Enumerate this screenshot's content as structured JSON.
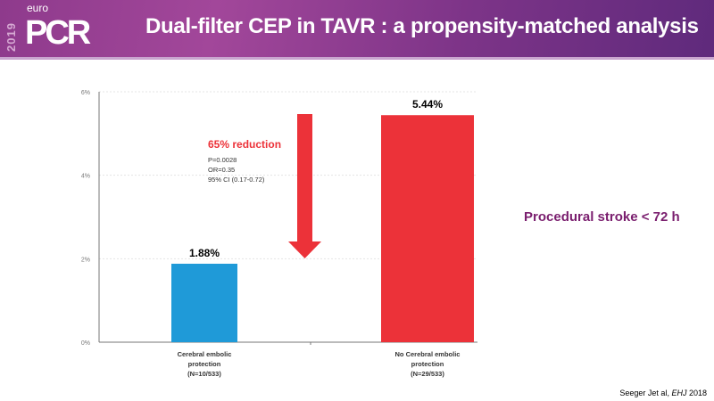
{
  "header": {
    "title": "Dual-filter CEP in TAVR : a propensity-matched analysis",
    "logo": {
      "year": "2019",
      "brand_top": "euro",
      "brand": "PCR"
    }
  },
  "side_label": "Procedural stroke < 72 h",
  "citation": {
    "authors": "Seeger Jet al, ",
    "journal": "EHJ",
    "year": " 2018"
  },
  "colors": {
    "blue": "#1f9ad8",
    "red": "#ec3239",
    "purple": "#7a1e6e"
  },
  "chart_data": {
    "type": "bar",
    "categories": [
      [
        "Cerebral embolic",
        "protection",
        "(N=10/533)"
      ],
      [
        "No Cerebral embolic",
        "protection",
        "(N=29/533)"
      ]
    ],
    "values": [
      1.88,
      5.44
    ],
    "data_labels": [
      "1.88%",
      "5.44%"
    ],
    "bar_colors": [
      "#1f9ad8",
      "#ec3239"
    ],
    "ylim": [
      0,
      6
    ],
    "yticks": [
      {
        "v": 0,
        "label": "0%"
      },
      {
        "v": 2,
        "label": "2%"
      },
      {
        "v": 4,
        "label": "4%"
      },
      {
        "v": 6,
        "label": "6%"
      }
    ],
    "grid": true,
    "annotation": {
      "headline": "65% reduction",
      "lines": [
        "P=0.0028",
        "OR=0.35",
        "95% CI (0.17-0.72)"
      ]
    }
  }
}
